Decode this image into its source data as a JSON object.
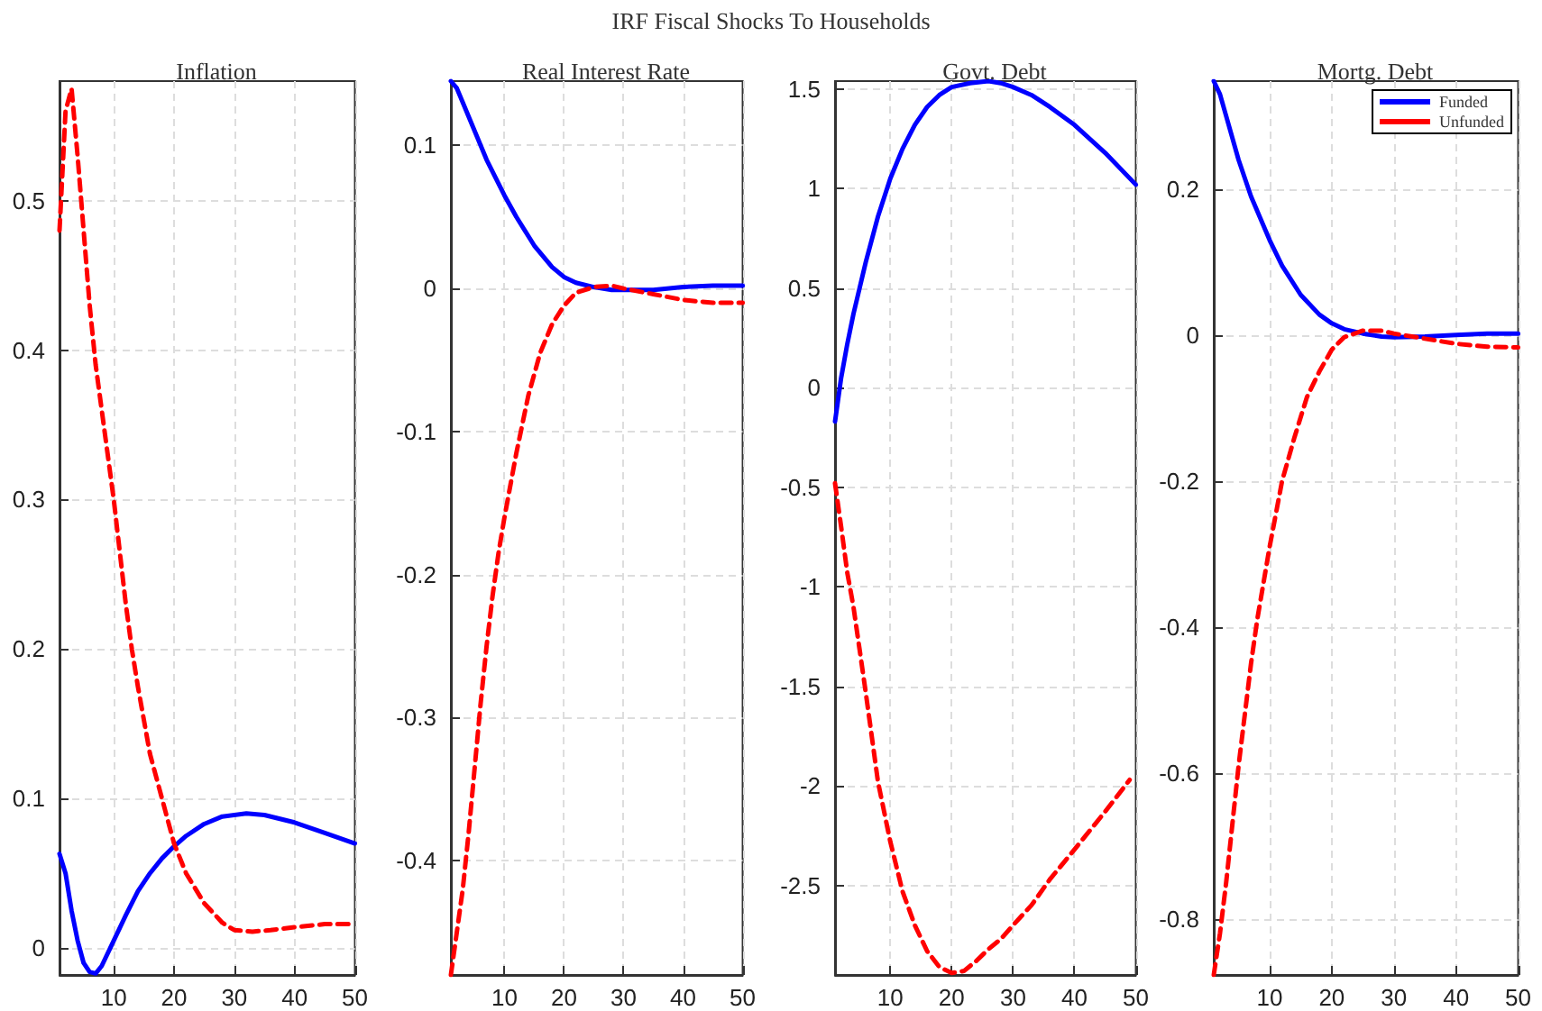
{
  "chart_data": [
    {
      "type": "line",
      "title": "Inflation",
      "annotations": [
        "IRF Fiscal Shocks To Households"
      ],
      "xlim": [
        1,
        50
      ],
      "xticks": [
        10,
        20,
        30,
        40,
        50
      ],
      "ylim": [
        -0.018,
        0.58
      ],
      "yticks": [
        0,
        0.1,
        0.2,
        0.3,
        0.4,
        0.5
      ],
      "grid": true,
      "marker": "none",
      "legend": false,
      "series": [
        {
          "color": "#0000ff",
          "line_style": "solid",
          "x": [
            1,
            2,
            3,
            4,
            5,
            6,
            7,
            8,
            10,
            12,
            14,
            16,
            18,
            20,
            22,
            25,
            28,
            32,
            35,
            40,
            45,
            50
          ],
          "values": [
            0.063,
            0.05,
            0.025,
            0.005,
            -0.01,
            -0.016,
            -0.017,
            -0.012,
            0.005,
            0.022,
            0.038,
            0.05,
            0.06,
            0.068,
            0.075,
            0.083,
            0.088,
            0.09,
            0.089,
            0.084,
            0.077,
            0.07
          ]
        },
        {
          "color": "#ff0000",
          "line_style": "dashed",
          "x": [
            1,
            2,
            3,
            4,
            5,
            6,
            7,
            8,
            10,
            12,
            13,
            14,
            16,
            18,
            20,
            22,
            25,
            28,
            30,
            33,
            36,
            40,
            45,
            50
          ],
          "values": [
            0.48,
            0.56,
            0.575,
            0.53,
            0.48,
            0.43,
            0.39,
            0.36,
            0.3,
            0.23,
            0.2,
            0.175,
            0.13,
            0.1,
            0.07,
            0.05,
            0.03,
            0.017,
            0.012,
            0.011,
            0.012,
            0.014,
            0.016,
            0.016
          ]
        }
      ]
    },
    {
      "type": "line",
      "title": "Real Interest Rate",
      "xlim": [
        1,
        50
      ],
      "xticks": [
        10,
        20,
        30,
        40,
        50
      ],
      "ylim": [
        -0.48,
        0.145
      ],
      "yticks": [
        -0.4,
        -0.3,
        -0.2,
        -0.1,
        0,
        0.1
      ],
      "grid": true,
      "marker": "none",
      "legend": false,
      "series": [
        {
          "color": "#0000ff",
          "line_style": "solid",
          "x": [
            1,
            2,
            3,
            5,
            7,
            10,
            12,
            15,
            18,
            20,
            22,
            25,
            28,
            30,
            35,
            40,
            45,
            50
          ],
          "values": [
            0.145,
            0.14,
            0.13,
            0.11,
            0.09,
            0.065,
            0.05,
            0.03,
            0.015,
            0.008,
            0.004,
            0.001,
            -0.001,
            -0.001,
            -0.001,
            0.001,
            0.002,
            0.002
          ]
        },
        {
          "color": "#ff0000",
          "line_style": "dashed",
          "x": [
            1,
            2,
            3,
            4,
            5,
            6,
            7,
            8,
            9,
            10,
            12,
            14,
            16,
            18,
            20,
            22,
            25,
            28,
            30,
            35,
            40,
            45,
            50
          ],
          "values": [
            -0.48,
            -0.45,
            -0.42,
            -0.38,
            -0.335,
            -0.29,
            -0.25,
            -0.215,
            -0.185,
            -0.16,
            -0.115,
            -0.075,
            -0.045,
            -0.025,
            -0.012,
            -0.003,
            0.001,
            0.002,
            0,
            -0.004,
            -0.008,
            -0.01,
            -0.01
          ]
        }
      ]
    },
    {
      "type": "line",
      "title": "Govt. Debt",
      "xlim": [
        1,
        50
      ],
      "xticks": [
        10,
        20,
        30,
        40,
        50
      ],
      "ylim": [
        -2.95,
        1.54
      ],
      "yticks": [
        -2.5,
        -2,
        -1.5,
        -1,
        -0.5,
        0,
        0.5,
        1,
        1.5
      ],
      "grid": true,
      "marker": "none",
      "legend": false,
      "series": [
        {
          "color": "#0000ff",
          "line_style": "solid",
          "x": [
            1,
            2,
            3,
            4,
            6,
            8,
            10,
            12,
            14,
            16,
            18,
            20,
            23,
            26,
            28,
            30,
            33,
            36,
            40,
            45,
            50
          ],
          "values": [
            -0.17,
            0.05,
            0.22,
            0.37,
            0.63,
            0.86,
            1.05,
            1.2,
            1.32,
            1.41,
            1.47,
            1.51,
            1.53,
            1.54,
            1.53,
            1.51,
            1.47,
            1.41,
            1.32,
            1.18,
            1.02
          ]
        },
        {
          "color": "#ff0000",
          "line_style": "dashed",
          "x": [
            1,
            2,
            3,
            4,
            6,
            8,
            10,
            12,
            14,
            16,
            18,
            20,
            22,
            24,
            26,
            28,
            30,
            33,
            36,
            40,
            45,
            49
          ],
          "values": [
            -0.48,
            -0.7,
            -0.93,
            -1.1,
            -1.53,
            -1.98,
            -2.28,
            -2.53,
            -2.7,
            -2.83,
            -2.91,
            -2.94,
            -2.93,
            -2.88,
            -2.82,
            -2.77,
            -2.7,
            -2.6,
            -2.47,
            -2.32,
            -2.13,
            -1.97
          ]
        }
      ]
    },
    {
      "type": "line",
      "title": "Mortg. Debt",
      "xlim": [
        1,
        50
      ],
      "xticks": [
        10,
        20,
        30,
        40,
        50
      ],
      "ylim": [
        -0.877,
        0.348
      ],
      "yticks": [
        -0.8,
        -0.6,
        -0.4,
        -0.2,
        0,
        0.2
      ],
      "grid": true,
      "marker": "none",
      "legend": "top right",
      "series": [
        {
          "name": "Funded",
          "color": "#0000ff",
          "line_style": "solid",
          "x": [
            1,
            2,
            3,
            5,
            7,
            10,
            12,
            15,
            18,
            20,
            22,
            25,
            28,
            30,
            35,
            40,
            45,
            50
          ],
          "values": [
            0.348,
            0.33,
            0.3,
            0.24,
            0.19,
            0.13,
            0.095,
            0.055,
            0.028,
            0.016,
            0.008,
            0.002,
            -0.002,
            -0.003,
            -0.002,
            0,
            0.002,
            0.002
          ]
        },
        {
          "name": "Unfunded",
          "color": "#ff0000",
          "line_style": "dashed",
          "x": [
            1,
            2,
            3,
            4,
            5,
            6,
            7,
            8,
            10,
            12,
            14,
            16,
            18,
            20,
            22,
            25,
            28,
            30,
            35,
            40,
            45,
            50
          ],
          "values": [
            -0.877,
            -0.82,
            -0.75,
            -0.67,
            -0.59,
            -0.52,
            -0.45,
            -0.39,
            -0.29,
            -0.2,
            -0.14,
            -0.085,
            -0.05,
            -0.02,
            -0.003,
            0.006,
            0.006,
            0.002,
            -0.005,
            -0.012,
            -0.016,
            -0.017
          ]
        }
      ]
    }
  ]
}
